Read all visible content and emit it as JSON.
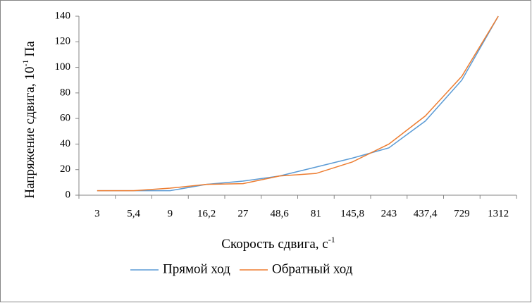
{
  "chart_data": {
    "type": "line",
    "y_label": [
      "Напряжение сдвига, 10",
      "-1",
      "Па"
    ],
    "x_label": [
      "Скорость сдвига, с",
      "-1"
    ],
    "categories": [
      "3",
      "5,4",
      "9",
      "16,2",
      "27",
      "48,6",
      "81",
      "145,8",
      "243",
      "437,4",
      "729",
      "1312"
    ],
    "series": [
      {
        "name": "Прямой ход",
        "color": "#5b9bd5",
        "values": [
          3.5,
          3.5,
          3.5,
          8.5,
          11,
          15,
          22,
          29,
          37,
          58,
          90,
          140
        ]
      },
      {
        "name": "Обратный ход",
        "color": "#ed7d31",
        "values": [
          3.5,
          3.5,
          5.5,
          8.5,
          9,
          15,
          17,
          26,
          40,
          62,
          93,
          140
        ]
      }
    ],
    "ylim": [
      0,
      140
    ],
    "yticks": [
      0,
      20,
      40,
      60,
      80,
      100,
      120,
      140
    ],
    "grid": false,
    "legend": "bottom"
  }
}
